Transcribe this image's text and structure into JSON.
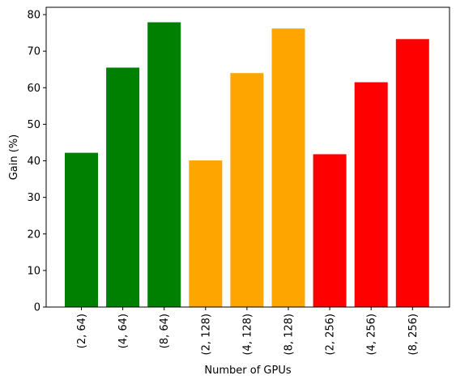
{
  "chart_data": {
    "type": "bar",
    "title": "",
    "xlabel": "Number of GPUs",
    "ylabel": "Gain (%)",
    "ylim": [
      0,
      82
    ],
    "yticks": [
      0,
      10,
      20,
      30,
      40,
      50,
      60,
      70,
      80
    ],
    "grid": false,
    "categories": [
      "(2, 64)",
      "(4, 64)",
      "(8, 64)",
      "(2, 128)",
      "(4, 128)",
      "(8, 128)",
      "(2, 256)",
      "(4, 256)",
      "(8, 256)"
    ],
    "values": [
      42.2,
      65.5,
      77.9,
      40.1,
      64.0,
      76.2,
      41.8,
      61.5,
      73.3
    ],
    "colors": [
      "#008000",
      "#008000",
      "#008000",
      "#FFA500",
      "#FFA500",
      "#FFA500",
      "#FF0000",
      "#FF0000",
      "#FF0000"
    ]
  }
}
